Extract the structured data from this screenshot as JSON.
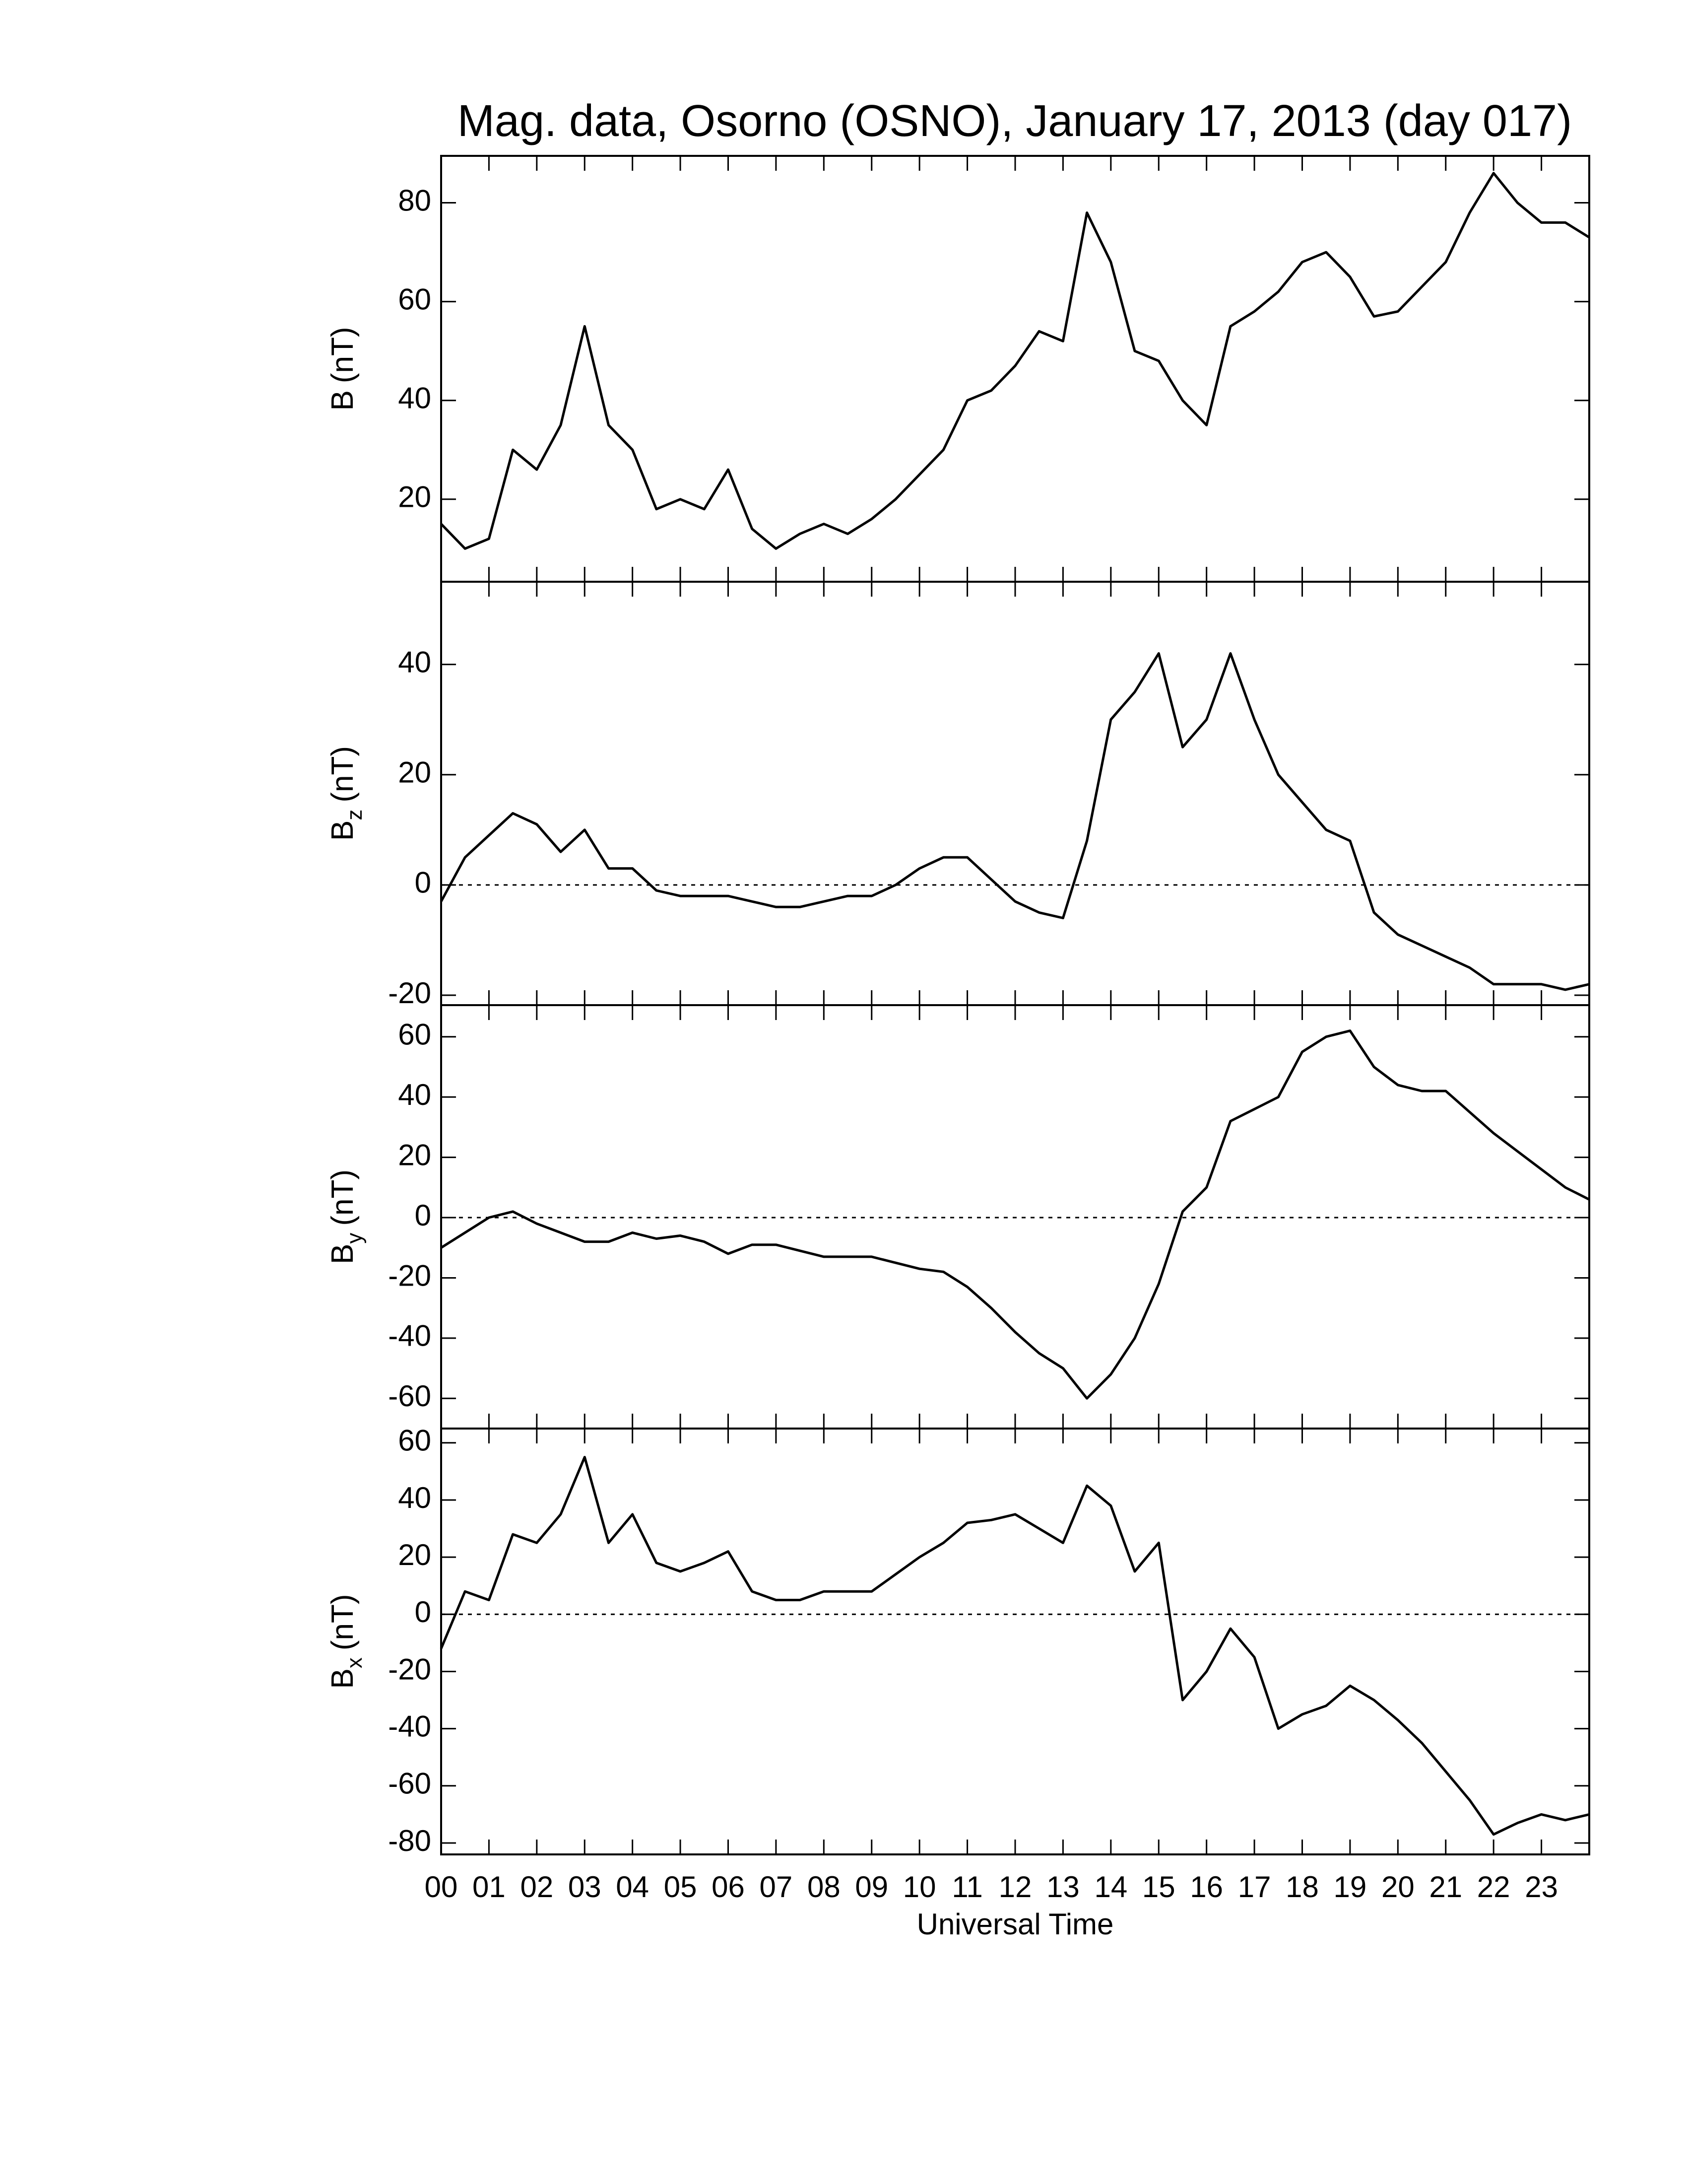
{
  "chart_data": [
    {
      "type": "line",
      "title": "Mag. data, Osorno (OSNO), January 17, 2013 (day 017)",
      "ylabel": {
        "symbol": "B",
        "unit": "(nT)"
      },
      "xlim": [
        0,
        24
      ],
      "xticks": [
        0,
        1,
        2,
        3,
        4,
        5,
        6,
        7,
        8,
        9,
        10,
        11,
        12,
        13,
        14,
        15,
        16,
        17,
        18,
        19,
        20,
        21,
        22,
        23
      ],
      "ylim": [
        3.3,
        89.5
      ],
      "yticks": [
        20,
        40,
        60,
        80
      ],
      "zero_line": false,
      "color": "#000000",
      "x": [
        0,
        0.5,
        1,
        1.5,
        2,
        2.5,
        3,
        3.5,
        4,
        4.5,
        5,
        5.5,
        6,
        6.5,
        7,
        7.5,
        8,
        8.5,
        9,
        9.5,
        10,
        10.5,
        11,
        11.5,
        12,
        12.5,
        13,
        13.5,
        14,
        14.5,
        15,
        15.5,
        16,
        16.5,
        17,
        17.5,
        18,
        18.5,
        19,
        19.5,
        20,
        20.5,
        21,
        21.5,
        22,
        22.5,
        23,
        23.5,
        24
      ],
      "values": [
        15,
        10,
        12,
        30,
        26,
        35,
        55,
        35,
        30,
        18,
        20,
        18,
        26,
        14,
        10,
        13,
        15,
        13,
        16,
        20,
        25,
        30,
        40,
        42,
        47,
        54,
        52,
        78,
        68,
        50,
        48,
        40,
        35,
        55,
        58,
        62,
        68,
        70,
        65,
        57,
        58,
        63,
        68,
        78,
        86,
        80,
        76,
        76,
        73
      ]
    },
    {
      "type": "line",
      "ylabel": {
        "symbol": "B",
        "subscript": "z",
        "unit": "(nT)"
      },
      "xlim": [
        0,
        24
      ],
      "xticks": [
        0,
        1,
        2,
        3,
        4,
        5,
        6,
        7,
        8,
        9,
        10,
        11,
        12,
        13,
        14,
        15,
        16,
        17,
        18,
        19,
        20,
        21,
        22,
        23
      ],
      "ylim": [
        -21.8,
        55
      ],
      "yticks": [
        -20,
        0,
        20,
        40
      ],
      "zero_line": true,
      "color": "#000000",
      "x": [
        0,
        0.5,
        1,
        1.5,
        2,
        2.5,
        3,
        3.5,
        4,
        4.5,
        5,
        5.5,
        6,
        6.5,
        7,
        7.5,
        8,
        8.5,
        9,
        9.5,
        10,
        10.5,
        11,
        11.5,
        12,
        12.5,
        13,
        13.5,
        14,
        14.5,
        15,
        15.5,
        16,
        16.5,
        17,
        17.5,
        18,
        18.5,
        19,
        19.5,
        20,
        20.5,
        21,
        21.5,
        22,
        22.5,
        23,
        23.5,
        24
      ],
      "values": [
        -3,
        5,
        9,
        13,
        11,
        6,
        10,
        3,
        3,
        -1,
        -2,
        -2,
        -2,
        -3,
        -4,
        -4,
        -3,
        -2,
        -2,
        0,
        3,
        5,
        5,
        1,
        -3,
        -5,
        -6,
        8,
        30,
        35,
        42,
        25,
        30,
        42,
        30,
        20,
        15,
        10,
        8,
        -5,
        -9,
        -11,
        -13,
        -15,
        -18,
        -18,
        -18,
        -19,
        -18
      ]
    },
    {
      "type": "line",
      "ylabel": {
        "symbol": "B",
        "subscript": "y",
        "unit": "(nT)"
      },
      "xlim": [
        0,
        24
      ],
      "xticks": [
        0,
        1,
        2,
        3,
        4,
        5,
        6,
        7,
        8,
        9,
        10,
        11,
        12,
        13,
        14,
        15,
        16,
        17,
        18,
        19,
        20,
        21,
        22,
        23
      ],
      "ylim": [
        -70,
        70.5
      ],
      "yticks": [
        -60,
        -40,
        -20,
        0,
        20,
        40,
        60
      ],
      "zero_line": true,
      "color": "#000000",
      "x": [
        0,
        0.5,
        1,
        1.5,
        2,
        2.5,
        3,
        3.5,
        4,
        4.5,
        5,
        5.5,
        6,
        6.5,
        7,
        7.5,
        8,
        8.5,
        9,
        9.5,
        10,
        10.5,
        11,
        11.5,
        12,
        12.5,
        13,
        13.5,
        14,
        14.5,
        15,
        15.5,
        16,
        16.5,
        17,
        17.5,
        18,
        18.5,
        19,
        19.5,
        20,
        20.5,
        21,
        21.5,
        22,
        22.5,
        23,
        23.5,
        24
      ],
      "values": [
        -10,
        -5,
        0,
        2,
        -2,
        -5,
        -8,
        -8,
        -5,
        -7,
        -6,
        -8,
        -12,
        -9,
        -9,
        -11,
        -13,
        -13,
        -13,
        -15,
        -17,
        -18,
        -23,
        -30,
        -38,
        -45,
        -50,
        -60,
        -52,
        -40,
        -22,
        2,
        10,
        32,
        36,
        40,
        55,
        60,
        62,
        50,
        44,
        42,
        42,
        35,
        28,
        22,
        16,
        10,
        6
      ]
    },
    {
      "type": "line",
      "ylabel": {
        "symbol": "B",
        "subscript": "x",
        "unit": "(nT)"
      },
      "xlabel": "Universal Time",
      "xlim": [
        0,
        24
      ],
      "xticks": [
        {
          "value": 0,
          "label": "00"
        },
        {
          "value": 1,
          "label": "01"
        },
        {
          "value": 2,
          "label": "02"
        },
        {
          "value": 3,
          "label": "03"
        },
        {
          "value": 4,
          "label": "04"
        },
        {
          "value": 5,
          "label": "05"
        },
        {
          "value": 6,
          "label": "06"
        },
        {
          "value": 7,
          "label": "07"
        },
        {
          "value": 8,
          "label": "08"
        },
        {
          "value": 9,
          "label": "09"
        },
        {
          "value": 10,
          "label": "10"
        },
        {
          "value": 11,
          "label": "11"
        },
        {
          "value": 12,
          "label": "12"
        },
        {
          "value": 13,
          "label": "13"
        },
        {
          "value": 14,
          "label": "14"
        },
        {
          "value": 15,
          "label": "15"
        },
        {
          "value": 16,
          "label": "16"
        },
        {
          "value": 17,
          "label": "17"
        },
        {
          "value": 18,
          "label": "18"
        },
        {
          "value": 19,
          "label": "19"
        },
        {
          "value": 20,
          "label": "20"
        },
        {
          "value": 21,
          "label": "21"
        },
        {
          "value": 22,
          "label": "22"
        },
        {
          "value": 23,
          "label": "23"
        }
      ],
      "ylim": [
        -84,
        65
      ],
      "yticks": [
        -80,
        -60,
        -40,
        -20,
        0,
        20,
        40,
        60
      ],
      "zero_line": true,
      "color": "#000000",
      "x": [
        0,
        0.5,
        1,
        1.5,
        2,
        2.5,
        3,
        3.5,
        4,
        4.5,
        5,
        5.5,
        6,
        6.5,
        7,
        7.5,
        8,
        8.5,
        9,
        9.5,
        10,
        10.5,
        11,
        11.5,
        12,
        12.5,
        13,
        13.5,
        14,
        14.5,
        15,
        15.5,
        16,
        16.5,
        17,
        17.5,
        18,
        18.5,
        19,
        19.5,
        20,
        20.5,
        21,
        21.5,
        22,
        22.5,
        23,
        23.5,
        24
      ],
      "values": [
        -12,
        8,
        5,
        28,
        25,
        35,
        55,
        25,
        35,
        18,
        15,
        18,
        22,
        8,
        5,
        5,
        8,
        8,
        8,
        14,
        20,
        25,
        32,
        33,
        35,
        30,
        25,
        45,
        38,
        15,
        25,
        -30,
        -20,
        -5,
        -15,
        -40,
        -35,
        -32,
        -25,
        -30,
        -37,
        -45,
        -55,
        -65,
        -77,
        -73,
        -70,
        -72,
        -70
      ]
    }
  ]
}
